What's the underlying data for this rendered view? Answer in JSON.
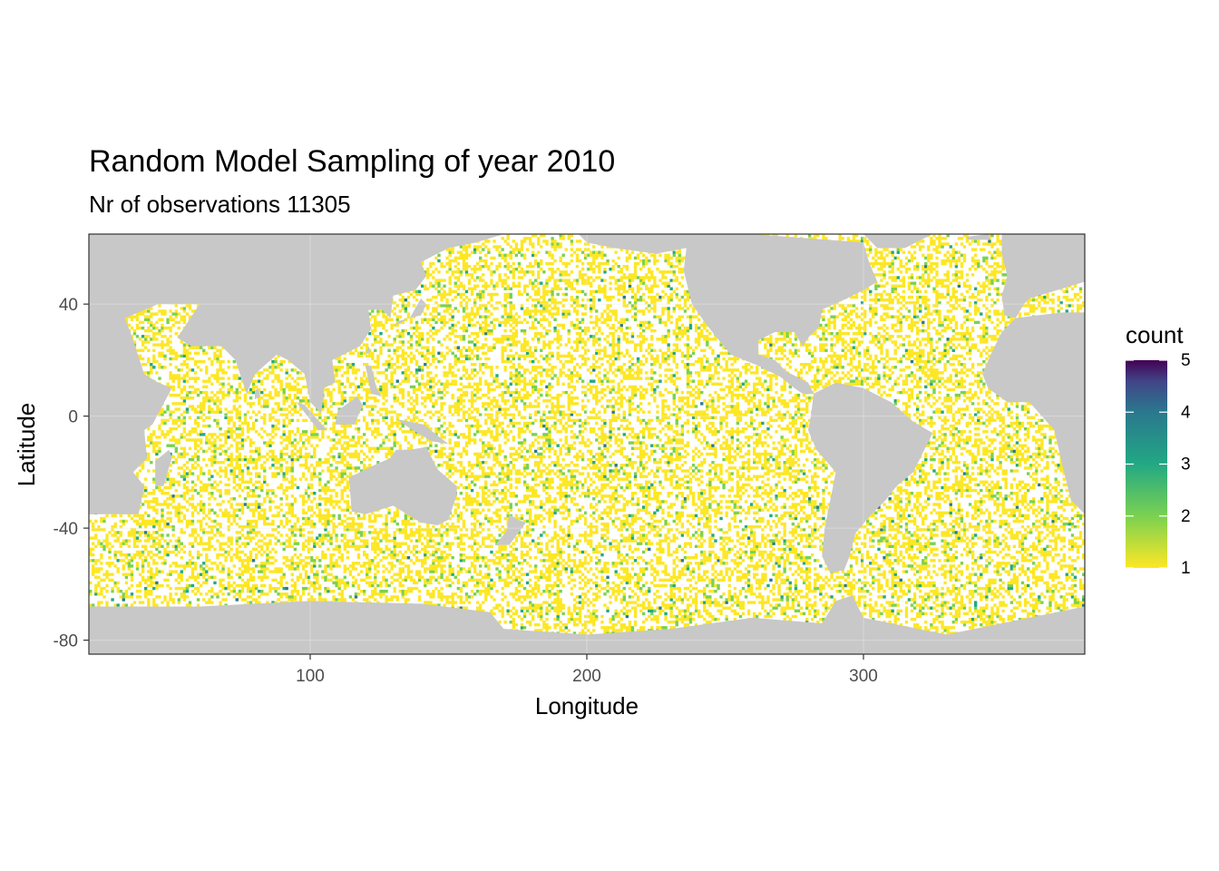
{
  "chart_data": {
    "type": "heatmap",
    "title": "Random Model Sampling of year 2010",
    "subtitle": "Nr of observations 11305",
    "xlabel": "Longitude",
    "ylabel": "Latitude",
    "xlim": [
      20,
      380
    ],
    "ylim": [
      -85,
      65
    ],
    "x_ticks": [
      100,
      200,
      300
    ],
    "y_ticks": [
      40,
      0,
      -40,
      -80
    ],
    "grid": true,
    "legend": {
      "title": "count",
      "position": "right",
      "ticks": [
        5,
        4,
        3,
        2,
        1
      ],
      "range": [
        1,
        5
      ],
      "colormap": "viridis-reversed",
      "colors": [
        "#fde725",
        "#7ad151",
        "#22a884",
        "#2a788e",
        "#414487",
        "#440154"
      ]
    },
    "cell_size_deg": 1,
    "colors": {
      "land": "#c8c8c8",
      "ocean": "#ffffff",
      "grid": "#ebebeb",
      "frame": "#333333"
    },
    "land_polygons": {
      "americas": [
        [
          236,
          60
        ],
        [
          225,
          58
        ],
        [
          210,
          60
        ],
        [
          200,
          62
        ],
        [
          197,
          65
        ],
        [
          260,
          65
        ],
        [
          300,
          62
        ],
        [
          302,
          55
        ],
        [
          305,
          48
        ],
        [
          300,
          45
        ],
        [
          294,
          42
        ],
        [
          285,
          38
        ],
        [
          284,
          32
        ],
        [
          280,
          28
        ],
        [
          278,
          25
        ],
        [
          275,
          30
        ],
        [
          268,
          30
        ],
        [
          262,
          27
        ],
        [
          262,
          22
        ],
        [
          268,
          20
        ],
        [
          272,
          16
        ],
        [
          280,
          12
        ],
        [
          282,
          8
        ],
        [
          278,
          8
        ],
        [
          275,
          10
        ],
        [
          270,
          14
        ],
        [
          262,
          18
        ],
        [
          252,
          22
        ],
        [
          247,
          28
        ],
        [
          243,
          33
        ],
        [
          238,
          40
        ],
        [
          236,
          48
        ],
        [
          235,
          52
        ]
      ],
      "south_america": [
        [
          282,
          8
        ],
        [
          290,
          12
        ],
        [
          300,
          10
        ],
        [
          310,
          5
        ],
        [
          318,
          -2
        ],
        [
          325,
          -6
        ],
        [
          322,
          -12
        ],
        [
          318,
          -20
        ],
        [
          312,
          -25
        ],
        [
          308,
          -30
        ],
        [
          302,
          -36
        ],
        [
          297,
          -42
        ],
        [
          295,
          -50
        ],
        [
          293,
          -55
        ],
        [
          288,
          -56
        ],
        [
          285,
          -50
        ],
        [
          286,
          -40
        ],
        [
          288,
          -30
        ],
        [
          290,
          -20
        ],
        [
          283,
          -12
        ],
        [
          280,
          -5
        ],
        [
          281,
          0
        ]
      ],
      "africa_west": [
        [
          20,
          65
        ],
        [
          20,
          -35
        ],
        [
          38,
          -35
        ],
        [
          40,
          -25
        ],
        [
          36,
          -20
        ],
        [
          41,
          -15
        ],
        [
          40,
          -5
        ],
        [
          43,
          -3
        ],
        [
          50,
          10
        ],
        [
          45,
          12
        ],
        [
          40,
          15
        ],
        [
          35,
          30
        ],
        [
          33,
          35
        ],
        [
          45,
          40
        ],
        [
          55,
          40
        ],
        [
          60,
          40
        ],
        [
          60,
          65
        ]
      ],
      "eurasia": [
        [
          60,
          65
        ],
        [
          60,
          40
        ],
        [
          52,
          28
        ],
        [
          57,
          25
        ],
        [
          62,
          25
        ],
        [
          68,
          25
        ],
        [
          73,
          20
        ],
        [
          77,
          8
        ],
        [
          80,
          15
        ],
        [
          88,
          22
        ],
        [
          92,
          20
        ],
        [
          98,
          15
        ],
        [
          100,
          5
        ],
        [
          104,
          1
        ],
        [
          105,
          10
        ],
        [
          109,
          12
        ],
        [
          108,
          20
        ],
        [
          112,
          22
        ],
        [
          118,
          25
        ],
        [
          122,
          31
        ],
        [
          121,
          38
        ],
        [
          126,
          38
        ],
        [
          129,
          35
        ],
        [
          130,
          43
        ],
        [
          138,
          45
        ],
        [
          142,
          50
        ],
        [
          140,
          55
        ],
        [
          150,
          60
        ],
        [
          160,
          62
        ],
        [
          170,
          65
        ]
      ],
      "madagascar": [
        [
          44,
          -25
        ],
        [
          47,
          -25
        ],
        [
          50,
          -15
        ],
        [
          49,
          -12
        ],
        [
          44,
          -16
        ]
      ],
      "australia": [
        [
          114,
          -22
        ],
        [
          115,
          -34
        ],
        [
          120,
          -35
        ],
        [
          130,
          -32
        ],
        [
          135,
          -35
        ],
        [
          140,
          -38
        ],
        [
          146,
          -39
        ],
        [
          150,
          -37
        ],
        [
          153,
          -28
        ],
        [
          153,
          -25
        ],
        [
          146,
          -19
        ],
        [
          142,
          -11
        ],
        [
          136,
          -12
        ],
        [
          131,
          -12
        ],
        [
          129,
          -15
        ],
        [
          122,
          -18
        ]
      ],
      "new_zealand": [
        [
          172,
          -35
        ],
        [
          175,
          -37
        ],
        [
          178,
          -38
        ],
        [
          172,
          -46
        ],
        [
          167,
          -46
        ],
        [
          171,
          -41
        ]
      ],
      "japan": [
        [
          130,
          32
        ],
        [
          132,
          34
        ],
        [
          140,
          36
        ],
        [
          142,
          40
        ],
        [
          140,
          42
        ],
        [
          136,
          35
        ]
      ],
      "borneo": [
        [
          109,
          -3
        ],
        [
          110,
          2
        ],
        [
          117,
          7
        ],
        [
          119,
          4
        ],
        [
          116,
          -3
        ]
      ],
      "sumatra": [
        [
          95,
          5
        ],
        [
          98,
          4
        ],
        [
          106,
          -5
        ],
        [
          103,
          -5
        ]
      ],
      "new_guinea": [
        [
          131,
          -1
        ],
        [
          141,
          -3
        ],
        [
          150,
          -10
        ],
        [
          144,
          -9
        ],
        [
          137,
          -5
        ]
      ],
      "philippines": [
        [
          120,
          18
        ],
        [
          122,
          18
        ],
        [
          124,
          10
        ],
        [
          126,
          7
        ],
        [
          122,
          8
        ]
      ],
      "greenland": [
        [
          300,
          65
        ],
        [
          305,
          60
        ],
        [
          315,
          60
        ],
        [
          325,
          65
        ]
      ],
      "europe_iberia": [
        [
          350,
          65
        ],
        [
          350,
          58
        ],
        [
          352,
          50
        ],
        [
          350,
          43
        ],
        [
          351,
          36
        ],
        [
          355,
          35
        ],
        [
          358,
          40
        ],
        [
          360,
          42
        ],
        [
          380,
          48
        ],
        [
          380,
          65
        ]
      ],
      "africa_east_wrap": [
        [
          343,
          15
        ],
        [
          345,
          10
        ],
        [
          352,
          5
        ],
        [
          360,
          5
        ],
        [
          369,
          -5
        ],
        [
          372,
          -18
        ],
        [
          375,
          -30
        ],
        [
          380,
          -35
        ],
        [
          380,
          37
        ],
        [
          372,
          37
        ],
        [
          363,
          36
        ],
        [
          355,
          35
        ],
        [
          350,
          30
        ],
        [
          346,
          22
        ]
      ],
      "antarctica": [
        [
          20,
          -68
        ],
        [
          20,
          -85
        ],
        [
          380,
          -85
        ],
        [
          380,
          -68
        ],
        [
          330,
          -78
        ],
        [
          300,
          -72
        ],
        [
          296,
          -64
        ],
        [
          290,
          -66
        ],
        [
          285,
          -74
        ],
        [
          260,
          -72
        ],
        [
          230,
          -76
        ],
        [
          200,
          -78
        ],
        [
          170,
          -76
        ],
        [
          165,
          -70
        ],
        [
          140,
          -67
        ],
        [
          100,
          -66
        ],
        [
          60,
          -68
        ]
      ],
      "sri_lanka": [
        [
          80,
          6
        ],
        [
          82,
          7
        ],
        [
          81,
          10
        ],
        [
          80,
          9
        ]
      ],
      "taiwan": [
        [
          120,
          22
        ],
        [
          122,
          23
        ],
        [
          121,
          25
        ]
      ],
      "iceland": [
        [
          337,
          64
        ],
        [
          345,
          65
        ],
        [
          346,
          63
        ],
        [
          338,
          63
        ]
      ]
    }
  }
}
